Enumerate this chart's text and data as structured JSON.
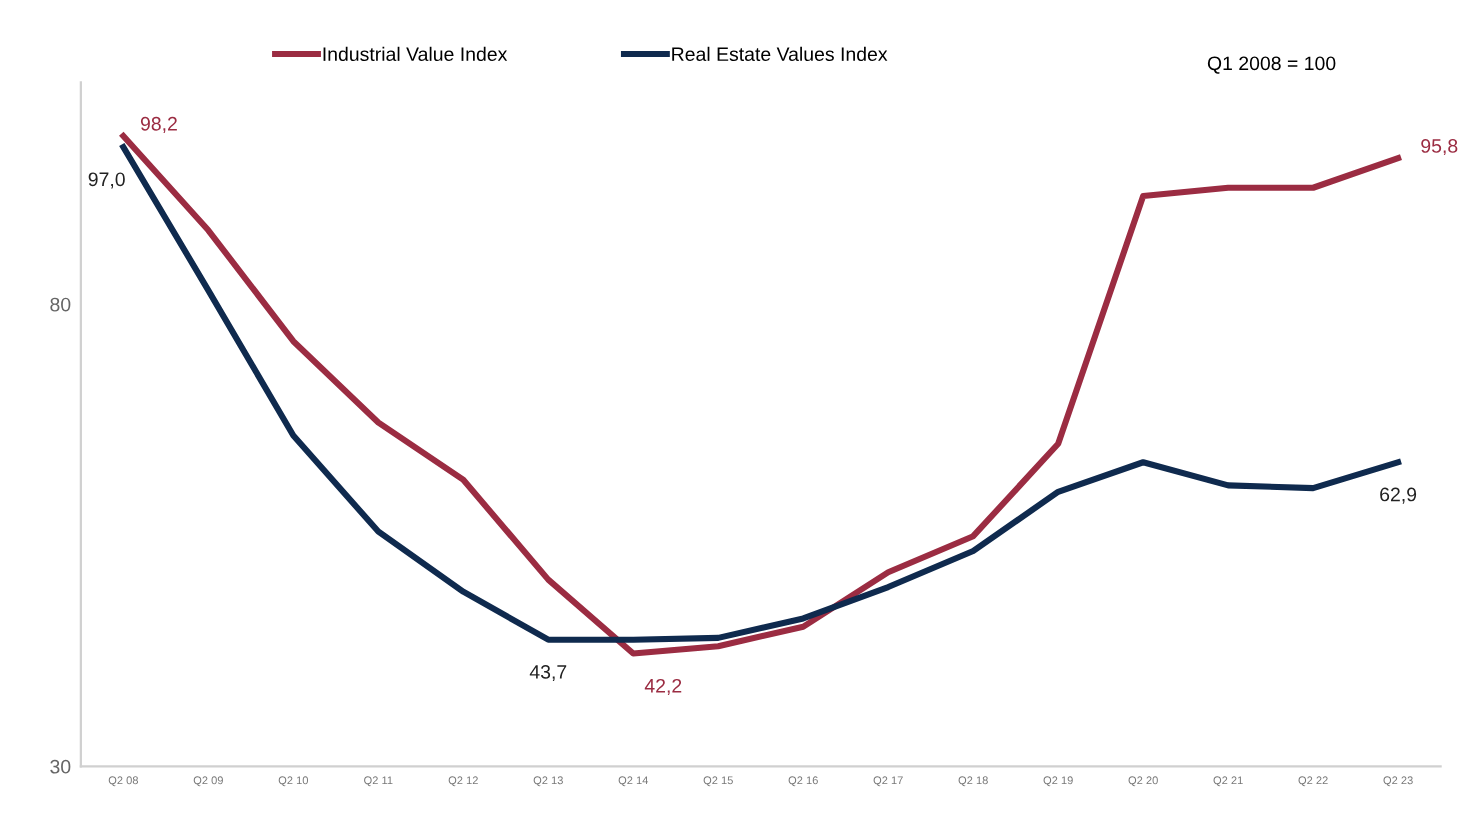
{
  "chart_data": {
    "type": "line",
    "categories": [
      "Q2 08",
      "Q2 09",
      "Q2 10",
      "Q2 11",
      "Q2 12",
      "Q2 13",
      "Q2 14",
      "Q2 15",
      "Q2 16",
      "Q2 17",
      "Q2 18",
      "Q2 19",
      "Q2 20",
      "Q2 21",
      "Q2 22",
      "Q2 23"
    ],
    "series": [
      {
        "name": "Industrial Value Index",
        "color": "#9b2c42",
        "values": [
          98.2,
          88.0,
          76.0,
          67.2,
          61.0,
          50.2,
          42.2,
          43.0,
          45.1,
          51.0,
          54.9,
          64.9,
          91.7,
          92.6,
          92.6,
          95.8
        ],
        "value_labels": [
          "98,2",
          null,
          null,
          null,
          null,
          null,
          "42,2",
          null,
          null,
          null,
          null,
          null,
          null,
          null,
          null,
          "95,8"
        ]
      },
      {
        "name": "Real Estate Values Index",
        "color": "#0f2a4e",
        "values": [
          97.0,
          81.5,
          65.8,
          55.4,
          48.9,
          43.7,
          43.7,
          43.9,
          46.0,
          49.4,
          53.3,
          59.7,
          62.9,
          60.4,
          60.1,
          62.9
        ],
        "value_labels": [
          "97,0",
          null,
          null,
          null,
          null,
          "43,7",
          null,
          null,
          null,
          null,
          null,
          null,
          null,
          null,
          null,
          "62,9"
        ]
      }
    ],
    "ylim": [
      30,
      104
    ],
    "yticks": [
      30,
      80
    ],
    "grid": false,
    "legend": "top left",
    "marker": "none",
    "line_style": "solid",
    "annotations": [
      "Q1 2008 = 100"
    ]
  }
}
